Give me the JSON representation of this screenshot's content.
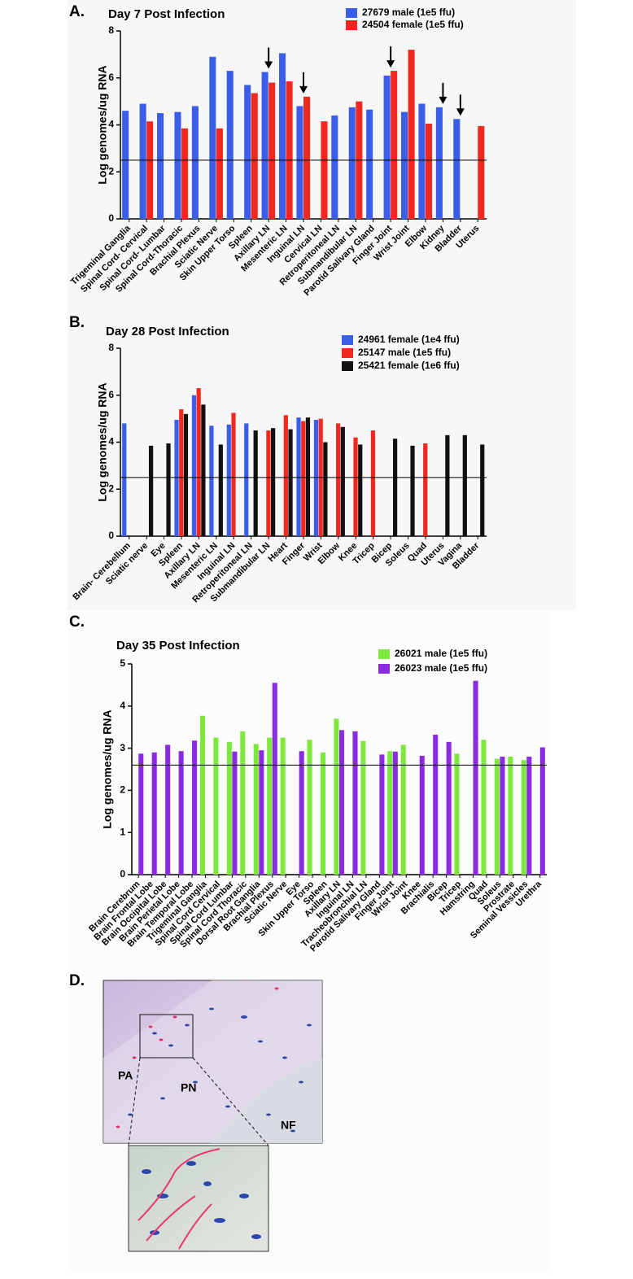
{
  "chart_data": [
    {
      "type": "bar",
      "panel_label": "A.",
      "title": "Day 7 Post Infection",
      "y_label": "Log genomes/ug RNA",
      "categories": [
        "Trigeminal Ganglia",
        "Spinal Cord- Cervical",
        "Spinal Cord- Lumbar",
        "Spinal Cord-Thoracic",
        "Brachial Plexus",
        "Sciatic Nerve",
        "Skin Upper Torso",
        "Spleen",
        "Axillary LN",
        "Mesenteric LN",
        "Inguinal LN",
        "Cervical LN",
        "Retroperitoneal LN",
        "Submandibular LN",
        "Parotid Salivary Gland",
        "Finger Joint",
        "Wrist Joint",
        "Elbow",
        "Kidney",
        "Bladder",
        "Uterus"
      ],
      "series": [
        {
          "name": "27679 male (1e5 ffu)",
          "color": "#3a5ee8",
          "values": [
            4.6,
            4.9,
            4.5,
            4.55,
            4.8,
            6.9,
            6.3,
            5.7,
            6.25,
            7.05,
            4.8,
            null,
            4.4,
            4.75,
            4.65,
            6.1,
            4.55,
            4.9,
            4.75,
            4.25,
            null
          ]
        },
        {
          "name": "24504 female (1e5 ffu)",
          "color": "#f0281e",
          "values": [
            null,
            4.15,
            null,
            3.85,
            null,
            3.85,
            null,
            5.35,
            5.8,
            5.85,
            5.2,
            4.15,
            null,
            5.0,
            null,
            6.3,
            7.2,
            4.05,
            null,
            null,
            3.95
          ]
        }
      ],
      "ylim": [
        0,
        8
      ],
      "yticks": [
        0,
        2,
        4,
        6,
        8
      ],
      "reference_line": 2.5,
      "arrows": [
        8,
        10,
        15,
        18,
        19
      ]
    },
    {
      "type": "bar",
      "panel_label": "B.",
      "title": "Day 28 Post Infection",
      "y_label": "Log genomes/ug RNA",
      "categories": [
        "Brain- Cerebellum",
        "Sciatic nerve",
        "Eye",
        "Spleen",
        "Axillary LN",
        "Mesenteric LN",
        "Inguinal LN",
        "Retroperitoneal LN",
        "Submandibular LN",
        "Heart",
        "Finger",
        "Wrist",
        "Elbow",
        "Knee",
        "Tricep",
        "Bicep",
        "Soleus",
        "Quad",
        "Uterus",
        "Vagina",
        "Bladder"
      ],
      "series": [
        {
          "name": "24961 female (1e4 ffu)",
          "color": "#3a5ee8",
          "values": [
            4.8,
            null,
            null,
            4.95,
            6.0,
            4.7,
            4.75,
            4.8,
            null,
            null,
            5.05,
            4.95,
            null,
            null,
            null,
            null,
            null,
            null,
            null,
            null,
            null
          ]
        },
        {
          "name": "25147 male (1e5 ffu)",
          "color": "#f0281e",
          "values": [
            null,
            null,
            null,
            5.4,
            6.3,
            null,
            5.25,
            null,
            4.5,
            5.15,
            4.9,
            5.0,
            4.8,
            4.2,
            4.5,
            null,
            null,
            3.95,
            null,
            null,
            null
          ]
        },
        {
          "name": "25421 female (1e6 ffu)",
          "color": "#111111",
          "values": [
            null,
            3.85,
            3.95,
            5.2,
            5.6,
            3.9,
            null,
            4.5,
            4.6,
            4.55,
            5.05,
            4.0,
            4.65,
            3.9,
            null,
            4.15,
            3.85,
            null,
            4.3,
            4.3,
            3.9
          ]
        }
      ],
      "ylim": [
        0,
        8
      ],
      "yticks": [
        0,
        2,
        4,
        6,
        8
      ],
      "reference_line": 2.5
    },
    {
      "type": "bar",
      "panel_label": "C.",
      "title": "Day 35 Post Infection",
      "y_label": "Log genomes/ug RNA",
      "categories": [
        "Brain Cerebrum",
        "Brain Frontal Lobe",
        "Brain Occipital Lobe",
        "Brain Perietal Lobe",
        "Brain Temporal Lobe",
        "Trigeminal Ganglia",
        "Spinal Cord Cervical",
        "Spinal Cord Lumbar",
        "Spinal Cord Thoracic",
        "Dorsal Root Ganglia",
        "Brachial Plexus",
        "Sciatic Nerve",
        "Eye",
        "Skin Upper Torso",
        "Spleen",
        "Axillary LN",
        "Inguinal LN",
        "Tracheobronchial LN",
        "Parotid Salivary Gland",
        "Finger Joint",
        "Wrist Joint",
        "Knee",
        "Brachialis",
        "Bicep",
        "Tricep",
        "Hamstring",
        "Quad",
        "Soleus",
        "Prostrate",
        "Seminal Vessicles",
        "Urethra"
      ],
      "series": [
        {
          "name": "26021 male (1e5 ffu)",
          "color": "#7fe83c",
          "values": [
            null,
            null,
            null,
            null,
            null,
            3.77,
            3.25,
            3.15,
            3.4,
            3.1,
            3.25,
            3.25,
            null,
            3.2,
            2.9,
            3.7,
            null,
            3.17,
            null,
            2.93,
            3.08,
            null,
            null,
            null,
            2.87,
            null,
            3.2,
            2.75,
            2.8,
            2.72,
            null
          ]
        },
        {
          "name": "26023 male (1e5 ffu)",
          "color": "#8a2be2",
          "values": [
            2.87,
            2.9,
            3.08,
            2.93,
            3.18,
            null,
            null,
            2.92,
            null,
            2.95,
            4.55,
            null,
            2.93,
            null,
            null,
            3.43,
            3.4,
            null,
            2.85,
            2.92,
            null,
            2.82,
            3.32,
            3.15,
            null,
            4.6,
            null,
            2.8,
            null,
            2.8,
            3.02
          ]
        }
      ],
      "ylim": [
        0,
        5
      ],
      "yticks": [
        0,
        1,
        2,
        3,
        4,
        5
      ],
      "reference_line": 2.6
    }
  ],
  "figure_d": {
    "panel_label": "D.",
    "labels": [
      "PA",
      "PN",
      "NF"
    ]
  }
}
